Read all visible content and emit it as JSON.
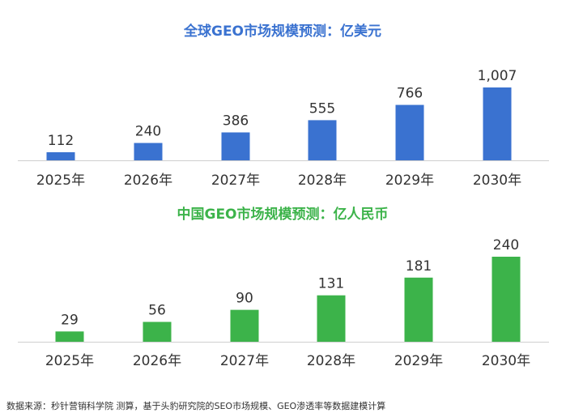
{
  "chart_data": [
    {
      "type": "bar",
      "title": "全球GEO市场规模预测：亿美元",
      "categories": [
        "2025年",
        "2026年",
        "2027年",
        "2028年",
        "2029年",
        "2030年"
      ],
      "values": [
        112,
        240,
        386,
        555,
        766,
        1007
      ],
      "value_labels": [
        "112",
        "240",
        "386",
        "555",
        "766",
        "1,007"
      ],
      "color": "#3a72d0",
      "title_color": "#3a72d0",
      "grid": false
    },
    {
      "type": "bar",
      "title": "中国GEO市场规模预测：亿人民币",
      "categories": [
        "2025年",
        "2026年",
        "2027年",
        "2028年",
        "2029年",
        "2030年"
      ],
      "values": [
        29,
        56,
        90,
        131,
        181,
        240
      ],
      "value_labels": [
        "29",
        "56",
        "90",
        "131",
        "181",
        "240"
      ],
      "color": "#3cb34a",
      "title_color": "#3cb34a",
      "grid": false
    }
  ],
  "source_note": "数据来源：秒针营销科学院 测算，基于头豹研究院的SEO市场规模、GEO渗透率等数据建模计算"
}
